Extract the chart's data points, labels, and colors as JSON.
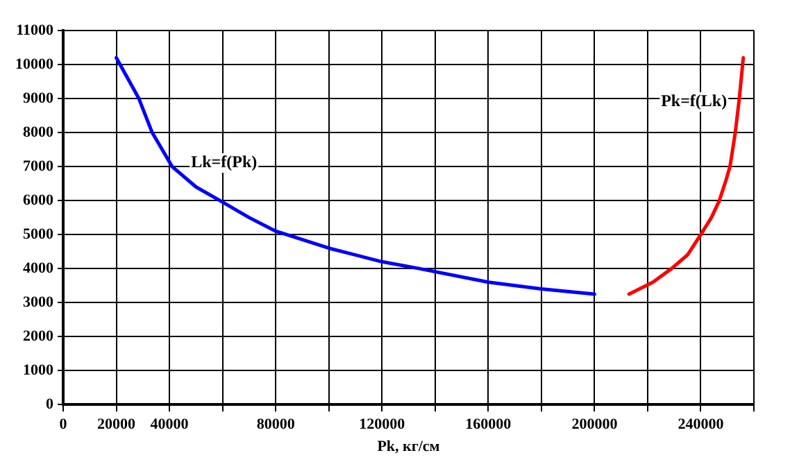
{
  "chart_data": {
    "type": "line",
    "xlabel": "Pk, кг/см",
    "xlim": [
      0,
      260000
    ],
    "xticks": [
      0,
      20000,
      40000,
      {
        "value": 60000,
        "label": null
      },
      80000,
      {
        "value": 100000,
        "label": null
      },
      120000,
      {
        "value": 140000,
        "label": null
      },
      160000,
      {
        "value": 180000,
        "label": null
      },
      200000,
      {
        "value": 220000,
        "label": null
      },
      240000,
      {
        "value": 260000,
        "label": null
      }
    ],
    "ylim": [
      0,
      11000
    ],
    "yticks": [
      0,
      1000,
      2000,
      3000,
      4000,
      5000,
      6000,
      7000,
      8000,
      9000,
      10000,
      11000
    ],
    "grid": true,
    "legend": false,
    "marker": "none",
    "line_style": "solid",
    "series": [
      {
        "name": "Lk=f(Pk)",
        "color": "#0000ff",
        "x": [
          20000,
          28500,
          33500,
          41000,
          50000,
          59000,
          70000,
          80000,
          100000,
          120000,
          134000,
          160000,
          180000,
          200000
        ],
        "values": [
          10200,
          9000,
          8000,
          7000,
          6400,
          6000,
          5500,
          5100,
          4600,
          4200,
          4000,
          3600,
          3400,
          3250
        ]
      },
      {
        "name": "Pk=f(Lk)",
        "color": "#ff0000",
        "x": [
          213000,
          222000,
          229000,
          235000,
          240000,
          244000,
          247000,
          249500,
          251000,
          253000,
          254500,
          256000
        ],
        "values": [
          3250,
          3600,
          4000,
          4400,
          5000,
          5500,
          6000,
          6600,
          7000,
          8000,
          9000,
          10200
        ]
      }
    ]
  }
}
